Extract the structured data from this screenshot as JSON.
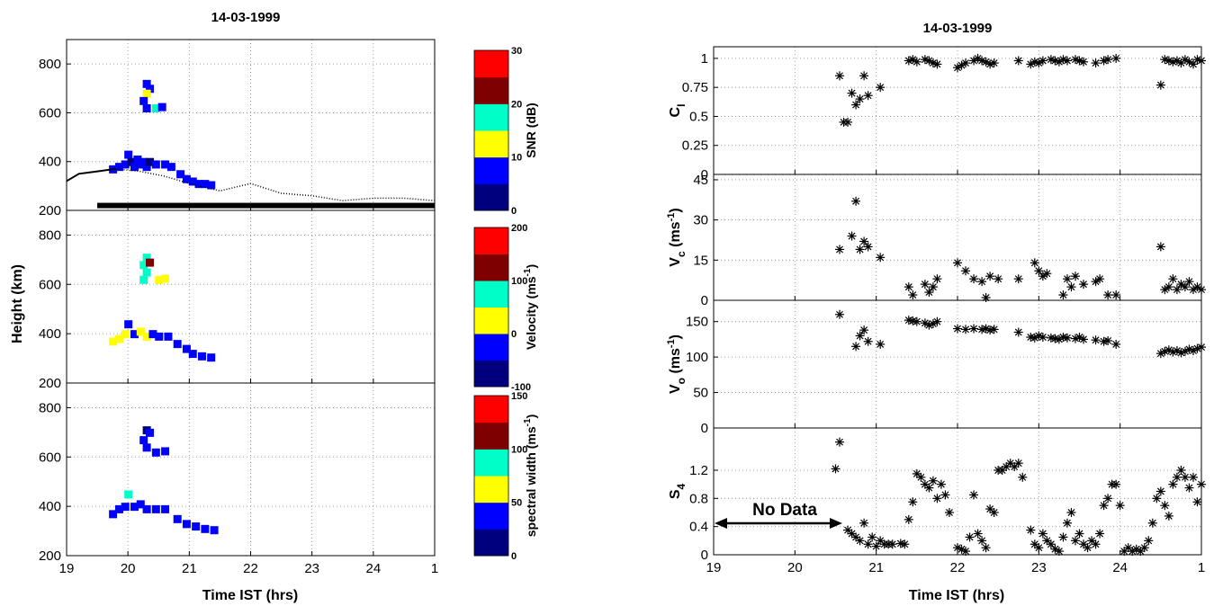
{
  "left_figure": {
    "title": "14-03-1999",
    "ylabel": "Height (km)",
    "xlabel": "Time IST (hrs)",
    "x_tick_labels": [
      "19",
      "20",
      "21",
      "22",
      "23",
      "24",
      "1"
    ],
    "y_tick_labels": [
      "200",
      "400",
      "600",
      "800"
    ],
    "colorbars": [
      {
        "label": "SNR (dB)",
        "ticks": [
          "0",
          "10",
          "20",
          "30"
        ],
        "colors": [
          "#00007f",
          "#0000ff",
          "#ffff00",
          "#00ffc8",
          "#7f0000",
          "#ff0000"
        ]
      },
      {
        "label": "Velocity (ms-1)",
        "label_main": "Velocity (ms",
        "label_sup": "-1",
        "label_end": ")",
        "ticks": [
          "-100",
          "0",
          "100",
          "200"
        ],
        "colors": [
          "#00007f",
          "#0000ff",
          "#ffff00",
          "#00ffc8",
          "#7f0000",
          "#ff0000"
        ]
      },
      {
        "label": "spectral width (ms-1)",
        "label_main": "spectral width (ms",
        "label_sup": "-1",
        "label_end": ")",
        "ticks": [
          "0",
          "50",
          "100",
          "150"
        ],
        "colors": [
          "#00007f",
          "#0000ff",
          "#ffff00",
          "#00ffc8",
          "#7f0000",
          "#ff0000"
        ]
      }
    ]
  },
  "right_figure": {
    "title": "14-03-1999",
    "xlabel": "Time IST (hrs)",
    "x_tick_labels": [
      "19",
      "20",
      "21",
      "22",
      "23",
      "24",
      "1"
    ],
    "annotation": "No Data"
  },
  "chart_data": [
    {
      "type": "heatmap",
      "panel": "SNR",
      "xlim": [
        19,
        25
      ],
      "ylim": [
        200,
        900
      ],
      "x_ticks": [
        19,
        20,
        21,
        22,
        23,
        24,
        25
      ],
      "y_ticks": [
        200,
        400,
        600,
        800
      ],
      "grid": true,
      "cells": [
        [
          20.3,
          720,
          1
        ],
        [
          20.35,
          700,
          1
        ],
        [
          20.3,
          680,
          2
        ],
        [
          20.25,
          650,
          1
        ],
        [
          20.3,
          620,
          1
        ],
        [
          20.45,
          620,
          3
        ],
        [
          20.55,
          625,
          1
        ],
        [
          19.75,
          370,
          1
        ],
        [
          19.85,
          380,
          1
        ],
        [
          19.95,
          390,
          1
        ],
        [
          20.0,
          430,
          1
        ],
        [
          20.05,
          400,
          0
        ],
        [
          20.1,
          380,
          1
        ],
        [
          20.15,
          410,
          1
        ],
        [
          20.2,
          390,
          1
        ],
        [
          20.25,
          400,
          1
        ],
        [
          20.3,
          380,
          1
        ],
        [
          20.35,
          400,
          0
        ],
        [
          20.45,
          390,
          1
        ],
        [
          20.6,
          390,
          1
        ],
        [
          20.7,
          380,
          1
        ],
        [
          20.85,
          350,
          1
        ],
        [
          20.95,
          330,
          1
        ],
        [
          21.05,
          320,
          1
        ],
        [
          21.15,
          310,
          1
        ],
        [
          21.25,
          310,
          1
        ],
        [
          21.35,
          305,
          1
        ]
      ],
      "hmf2_curve": {
        "x": [
          19,
          19.2,
          19.5,
          19.8,
          20.2,
          20.6,
          21,
          21.5,
          22,
          22.5,
          23,
          23.5,
          24,
          24.5,
          25
        ],
        "y": [
          320,
          350,
          360,
          370,
          360,
          340,
          310,
          280,
          310,
          270,
          260,
          240,
          250,
          250,
          240
        ]
      },
      "no_data_bar": {
        "x": [
          19.5,
          25
        ],
        "y": 220
      }
    },
    {
      "type": "heatmap",
      "panel": "Velocity",
      "xlim": [
        19,
        25
      ],
      "ylim": [
        200,
        900
      ],
      "x_ticks": [
        19,
        20,
        21,
        22,
        23,
        24,
        25
      ],
      "y_ticks": [
        200,
        400,
        600,
        800
      ],
      "grid": true,
      "cells": [
        [
          20.3,
          710,
          3
        ],
        [
          20.25,
          680,
          3
        ],
        [
          20.35,
          690,
          4
        ],
        [
          20.3,
          650,
          3
        ],
        [
          20.25,
          620,
          3
        ],
        [
          20.5,
          620,
          2
        ],
        [
          20.6,
          625,
          2
        ],
        [
          19.75,
          370,
          2
        ],
        [
          19.85,
          380,
          2
        ],
        [
          19.95,
          400,
          2
        ],
        [
          20.0,
          440,
          1
        ],
        [
          20.1,
          400,
          1
        ],
        [
          20.2,
          410,
          2
        ],
        [
          20.3,
          390,
          2
        ],
        [
          20.4,
          400,
          1
        ],
        [
          20.5,
          390,
          1
        ],
        [
          20.65,
          390,
          1
        ],
        [
          20.8,
          360,
          1
        ],
        [
          20.95,
          340,
          1
        ],
        [
          21.05,
          320,
          1
        ],
        [
          21.2,
          310,
          1
        ],
        [
          21.35,
          305,
          1
        ]
      ]
    },
    {
      "type": "heatmap",
      "panel": "Spectral width",
      "xlim": [
        19,
        25
      ],
      "ylim": [
        200,
        900
      ],
      "x_ticks": [
        19,
        20,
        21,
        22,
        23,
        24,
        25
      ],
      "y_ticks": [
        200,
        400,
        600,
        800
      ],
      "grid": true,
      "cells": [
        [
          20.3,
          710,
          0
        ],
        [
          20.35,
          700,
          1
        ],
        [
          20.25,
          670,
          1
        ],
        [
          20.3,
          640,
          1
        ],
        [
          20.45,
          620,
          1
        ],
        [
          20.6,
          625,
          1
        ],
        [
          19.75,
          370,
          1
        ],
        [
          19.85,
          390,
          1
        ],
        [
          19.95,
          400,
          1
        ],
        [
          20.0,
          450,
          3
        ],
        [
          20.1,
          400,
          1
        ],
        [
          20.2,
          410,
          1
        ],
        [
          20.3,
          390,
          1
        ],
        [
          20.45,
          390,
          1
        ],
        [
          20.6,
          390,
          1
        ],
        [
          20.8,
          350,
          1
        ],
        [
          20.95,
          330,
          1
        ],
        [
          21.1,
          320,
          1
        ],
        [
          21.25,
          310,
          1
        ],
        [
          21.4,
          305,
          1
        ]
      ]
    },
    {
      "type": "scatter",
      "panel": "Ci",
      "xlim": [
        19,
        25
      ],
      "ylim": [
        0,
        1.1
      ],
      "y_ticks": [
        0,
        0.25,
        0.5,
        0.75,
        1
      ],
      "y_tick_labels": [
        "0",
        "0.25",
        "0.5",
        "0.75",
        "1"
      ],
      "ylabel_main": "C",
      "ylabel_sub": "I",
      "x": [
        20.55,
        20.6,
        20.65,
        20.7,
        20.75,
        20.8,
        20.85,
        20.9,
        21.05,
        21.4,
        21.45,
        21.5,
        21.6,
        21.65,
        21.7,
        21.75,
        22.0,
        22.05,
        22.1,
        22.2,
        22.25,
        22.3,
        22.35,
        22.4,
        22.45,
        22.75,
        22.9,
        22.95,
        23.0,
        23.05,
        23.15,
        23.2,
        23.25,
        23.3,
        23.35,
        23.45,
        23.5,
        23.55,
        23.7,
        23.8,
        23.85,
        23.95,
        24.5,
        24.55,
        24.6,
        24.65,
        24.7,
        24.75,
        24.8,
        24.85,
        24.9,
        24.95,
        25.0
      ],
      "y": [
        0.85,
        0.45,
        0.45,
        0.7,
        0.6,
        0.65,
        0.85,
        0.68,
        0.75,
        0.98,
        0.99,
        0.97,
        0.99,
        0.98,
        0.96,
        0.95,
        0.92,
        0.94,
        0.96,
        0.98,
        1.0,
        0.98,
        0.97,
        0.95,
        0.96,
        0.98,
        0.95,
        0.97,
        0.96,
        0.98,
        0.99,
        0.98,
        0.97,
        0.99,
        0.98,
        0.99,
        0.98,
        0.97,
        0.96,
        0.98,
        0.99,
        1.0,
        0.77,
        0.99,
        0.98,
        0.97,
        0.98,
        0.96,
        0.99,
        0.97,
        0.95,
        0.99,
        0.98
      ]
    },
    {
      "type": "scatter",
      "panel": "Vc",
      "xlim": [
        19,
        25
      ],
      "ylim": [
        0,
        47
      ],
      "y_ticks": [
        0,
        15,
        30,
        45
      ],
      "y_tick_labels": [
        "0",
        "15",
        "30",
        "45"
      ],
      "ylabel_main": "V",
      "ylabel_sub": "c",
      "ylabel_tail": " (ms",
      "ylabel_sup": "-1",
      "ylabel_end": ")",
      "x": [
        20.55,
        20.7,
        20.75,
        20.8,
        20.85,
        20.9,
        21.05,
        21.4,
        21.45,
        21.6,
        21.65,
        21.7,
        21.75,
        22.0,
        22.1,
        22.2,
        22.3,
        22.35,
        22.4,
        22.5,
        22.75,
        22.95,
        23.0,
        23.05,
        23.1,
        23.3,
        23.35,
        23.4,
        23.45,
        23.55,
        23.7,
        23.75,
        23.85,
        23.95,
        24.5,
        24.55,
        24.6,
        24.65,
        24.7,
        24.75,
        24.8,
        24.85,
        24.9,
        24.95,
        25.0
      ],
      "y": [
        19,
        24,
        37,
        19,
        22,
        20,
        16,
        5,
        2,
        6,
        3,
        5,
        8,
        14,
        11,
        8,
        7,
        1,
        9,
        8,
        8,
        14,
        11,
        9,
        10,
        2,
        8,
        5,
        9,
        6,
        7,
        8,
        2,
        2,
        20,
        4,
        5,
        8,
        4,
        6,
        5,
        7,
        4,
        5,
        4
      ]
    },
    {
      "type": "scatter",
      "panel": "Vo",
      "xlim": [
        19,
        25
      ],
      "ylim": [
        0,
        180
      ],
      "y_ticks": [
        0,
        50,
        100,
        150
      ],
      "y_tick_labels": [
        "0",
        "50",
        "100",
        "150"
      ],
      "ylabel_main": "V",
      "ylabel_sub": "o",
      "ylabel_tail": " (ms",
      "ylabel_sup": "-1",
      "ylabel_end": ")",
      "x": [
        20.55,
        20.75,
        20.8,
        20.85,
        20.9,
        21.05,
        21.4,
        21.45,
        21.5,
        21.6,
        21.65,
        21.7,
        21.75,
        22.0,
        22.1,
        22.2,
        22.3,
        22.35,
        22.4,
        22.45,
        22.75,
        22.9,
        22.95,
        23.0,
        23.05,
        23.15,
        23.2,
        23.25,
        23.3,
        23.35,
        23.45,
        23.5,
        23.55,
        23.7,
        23.8,
        23.85,
        23.95,
        24.5,
        24.55,
        24.6,
        24.65,
        24.7,
        24.75,
        24.8,
        24.85,
        24.9,
        24.95,
        25.0
      ],
      "y": [
        160,
        115,
        130,
        138,
        122,
        118,
        152,
        151,
        150,
        148,
        145,
        147,
        150,
        140,
        139,
        140,
        139,
        140,
        138,
        139,
        135,
        128,
        127,
        130,
        128,
        127,
        126,
        125,
        128,
        127,
        126,
        128,
        125,
        124,
        122,
        123,
        118,
        105,
        108,
        110,
        107,
        109,
        106,
        108,
        111,
        109,
        112,
        114
      ]
    },
    {
      "type": "scatter",
      "panel": "S4",
      "xlim": [
        19,
        25
      ],
      "ylim": [
        0,
        1.8
      ],
      "y_ticks": [
        0,
        0.4,
        0.8,
        1.2
      ],
      "y_tick_labels": [
        "0",
        "0.4",
        "0.8",
        "1.2"
      ],
      "ylabel_main": "S",
      "ylabel_sub": "4",
      "x": [
        20.5,
        20.55,
        20.65,
        20.7,
        20.75,
        20.8,
        20.85,
        20.9,
        20.95,
        21.0,
        21.05,
        21.1,
        21.15,
        21.2,
        21.3,
        21.35,
        21.4,
        21.45,
        21.5,
        21.55,
        21.6,
        21.65,
        21.7,
        21.75,
        21.8,
        21.85,
        21.9,
        22.0,
        22.05,
        22.1,
        22.15,
        22.2,
        22.25,
        22.3,
        22.35,
        22.4,
        22.45,
        22.5,
        22.55,
        22.6,
        22.65,
        22.7,
        22.75,
        22.8,
        22.9,
        22.95,
        23.0,
        23.05,
        23.1,
        23.15,
        23.2,
        23.25,
        23.3,
        23.35,
        23.4,
        23.45,
        23.5,
        23.55,
        23.6,
        23.65,
        23.7,
        23.75,
        23.8,
        23.85,
        23.9,
        23.95,
        24.0,
        24.05,
        24.1,
        24.15,
        24.2,
        24.25,
        24.3,
        24.35,
        24.4,
        24.45,
        24.5,
        24.55,
        24.6,
        24.65,
        24.7,
        24.75,
        24.8,
        24.85,
        24.9,
        24.95,
        25.0
      ],
      "y": [
        1.22,
        1.6,
        0.35,
        0.3,
        0.25,
        0.2,
        0.45,
        0.15,
        0.25,
        0.12,
        0.2,
        0.15,
        0.15,
        0.15,
        0.16,
        0.15,
        0.5,
        0.75,
        1.15,
        1.1,
        1.0,
        0.95,
        1.05,
        0.8,
        1.0,
        0.85,
        0.6,
        0.1,
        0.08,
        0.05,
        0.25,
        0.85,
        0.3,
        0.2,
        0.1,
        0.65,
        0.6,
        1.2,
        1.2,
        1.25,
        1.3,
        1.25,
        1.3,
        1.1,
        0.35,
        0.15,
        0.1,
        0.3,
        0.2,
        0.15,
        0.08,
        0.05,
        0.25,
        0.45,
        0.6,
        0.2,
        0.3,
        0.15,
        0.1,
        0.2,
        0.15,
        0.3,
        0.7,
        0.8,
        1.0,
        1.0,
        0.7,
        0.05,
        0.1,
        0.05,
        0.08,
        0.05,
        0.1,
        0.2,
        0.45,
        0.8,
        0.9,
        0.7,
        0.55,
        1.0,
        1.1,
        1.2,
        1.1,
        0.95,
        1.1,
        0.75,
        1.0
      ]
    }
  ]
}
